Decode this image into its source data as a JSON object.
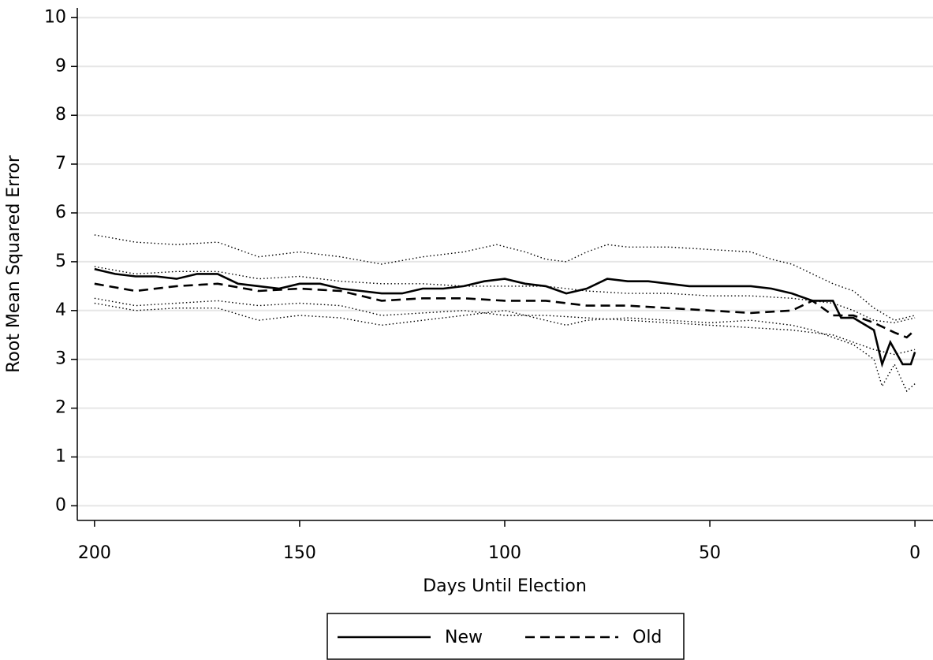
{
  "chart_data": {
    "type": "line",
    "xlabel": "Days Until Election",
    "ylabel": "Root Mean Squared Error",
    "xlim": [
      204.2,
      -4.4
    ],
    "ylim": [
      -0.3,
      10.2
    ],
    "xticks": [
      200,
      150,
      100,
      50,
      0
    ],
    "yticks": [
      0,
      1,
      2,
      3,
      4,
      5,
      6,
      7,
      8,
      9,
      10
    ],
    "grid": true,
    "legend": "bottom",
    "series": [
      {
        "name": "New",
        "color": "#000000",
        "dash": "solid",
        "x": [
          200,
          195,
          190,
          185,
          180,
          175,
          170,
          165,
          160,
          155,
          150,
          145,
          140,
          135,
          130,
          125,
          120,
          115,
          110,
          105,
          100,
          95,
          90,
          85,
          80,
          75,
          70,
          65,
          60,
          55,
          50,
          45,
          40,
          35,
          30,
          25,
          20,
          18,
          15,
          10,
          8,
          6,
          3,
          1,
          0
        ],
        "values": [
          4.85,
          4.75,
          4.7,
          4.7,
          4.65,
          4.75,
          4.75,
          4.55,
          4.5,
          4.45,
          4.55,
          4.55,
          4.45,
          4.4,
          4.35,
          4.35,
          4.45,
          4.45,
          4.5,
          4.6,
          4.65,
          4.55,
          4.5,
          4.35,
          4.45,
          4.65,
          4.6,
          4.6,
          4.55,
          4.5,
          4.5,
          4.5,
          4.5,
          4.45,
          4.35,
          4.2,
          4.2,
          3.85,
          3.85,
          3.6,
          2.9,
          3.35,
          2.9,
          2.9,
          3.15
        ]
      },
      {
        "name": "Old",
        "color": "#000000",
        "dash": "dashed",
        "x": [
          200,
          190,
          180,
          170,
          160,
          150,
          140,
          130,
          120,
          110,
          100,
          90,
          80,
          70,
          60,
          50,
          40,
          30,
          25,
          20,
          15,
          10,
          5,
          2,
          0
        ],
        "values": [
          4.55,
          4.4,
          4.5,
          4.55,
          4.4,
          4.45,
          4.4,
          4.2,
          4.25,
          4.25,
          4.2,
          4.2,
          4.1,
          4.1,
          4.05,
          4.0,
          3.95,
          4.0,
          4.2,
          3.9,
          3.9,
          3.75,
          3.55,
          3.45,
          3.6
        ]
      },
      {
        "color": "#000000",
        "dash": "dotted",
        "x": [
          200,
          190,
          180,
          170,
          160,
          150,
          140,
          130,
          120,
          110,
          102,
          95,
          90,
          85,
          80,
          75,
          70,
          65,
          60,
          50,
          40,
          35,
          30,
          25,
          20,
          15,
          10,
          5,
          0
        ],
        "values": [
          5.55,
          5.4,
          5.35,
          5.4,
          5.1,
          5.2,
          5.1,
          4.95,
          5.1,
          5.2,
          5.35,
          5.2,
          5.05,
          5.0,
          5.2,
          5.35,
          5.3,
          5.3,
          5.3,
          5.25,
          5.2,
          5.05,
          4.95,
          4.75,
          4.55,
          4.4,
          4.05,
          3.8,
          3.9
        ]
      },
      {
        "color": "#000000",
        "dash": "dotted",
        "x": [
          200,
          190,
          180,
          170,
          160,
          150,
          140,
          130,
          120,
          110,
          100,
          90,
          85,
          80,
          70,
          60,
          50,
          40,
          30,
          25,
          20,
          15,
          10,
          8,
          5,
          2,
          0
        ],
        "values": [
          4.15,
          4.0,
          4.05,
          4.05,
          3.8,
          3.9,
          3.85,
          3.7,
          3.8,
          3.9,
          4.0,
          3.8,
          3.7,
          3.8,
          3.85,
          3.8,
          3.75,
          3.8,
          3.7,
          3.6,
          3.45,
          3.3,
          3.0,
          2.45,
          2.9,
          2.35,
          2.5
        ]
      },
      {
        "color": "#000000",
        "dash": "dotted",
        "x": [
          200,
          190,
          180,
          170,
          160,
          150,
          140,
          130,
          120,
          110,
          100,
          90,
          80,
          70,
          60,
          50,
          40,
          30,
          20,
          15,
          10,
          5,
          0
        ],
        "values": [
          4.9,
          4.75,
          4.8,
          4.8,
          4.65,
          4.7,
          4.6,
          4.55,
          4.55,
          4.5,
          4.5,
          4.5,
          4.4,
          4.35,
          4.35,
          4.3,
          4.3,
          4.25,
          4.15,
          4.0,
          3.8,
          3.75,
          3.85
        ]
      },
      {
        "color": "#000000",
        "dash": "dotted",
        "x": [
          200,
          190,
          180,
          170,
          160,
          150,
          140,
          130,
          120,
          110,
          100,
          90,
          80,
          70,
          60,
          50,
          40,
          30,
          20,
          10,
          5,
          0
        ],
        "values": [
          4.25,
          4.1,
          4.15,
          4.2,
          4.1,
          4.15,
          4.1,
          3.9,
          3.95,
          4.0,
          3.9,
          3.9,
          3.85,
          3.8,
          3.75,
          3.7,
          3.65,
          3.6,
          3.5,
          3.2,
          3.1,
          3.2
        ]
      }
    ]
  }
}
